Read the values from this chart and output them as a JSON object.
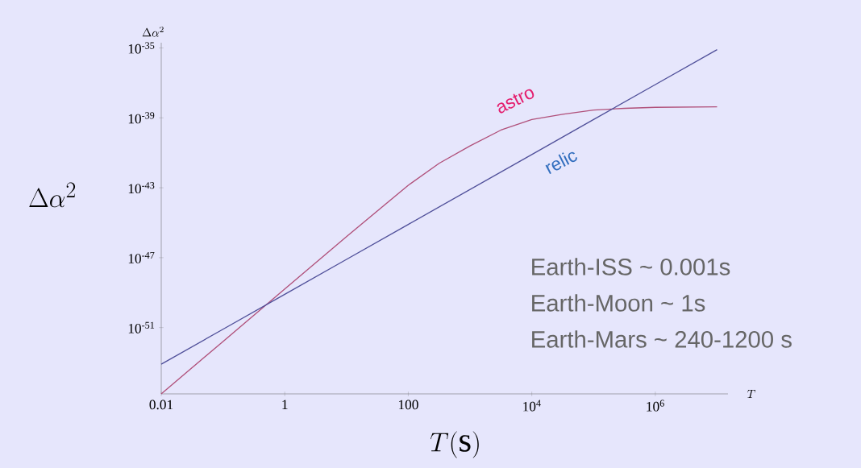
{
  "chart_data": {
    "type": "line",
    "xlabel": "T(\\mathrm{s})",
    "ylabel": "\\Delta\\alpha^2",
    "annotations": [
      "\\Delta\\alpha^2",
      "T",
      "Earth-ISS ~ 0.001s",
      "Earth-Moon ~ 1s",
      "Earth-Mars ~ 240-1200 s"
    ],
    "log": "xy",
    "xlim": [
      0.01,
      15000000
    ],
    "ylim": [
      1.6e-55,
      2e-35
    ],
    "xticks": [
      0.01,
      1,
      100,
      {
        "value": 10000,
        "label": "10$^{4}$"
      },
      {
        "value": 1000000,
        "label": "10$^{6}$"
      }
    ],
    "yticks": [
      {
        "value": 1e-35,
        "label": "10$^{-35}$"
      },
      {
        "value": 1e-39,
        "label": "10$^{-39}$"
      },
      {
        "value": 1e-43,
        "label": "10$^{-43}$"
      },
      {
        "value": 1e-47,
        "label": "10$^{-47}$"
      },
      {
        "value": 1e-51,
        "label": "10$^{-51}$"
      }
    ],
    "series": [
      {
        "name": "astro",
        "color": "#b0507a",
        "x": [
          0.01,
          0.1,
          1,
          10,
          100,
          316,
          1000,
          3162,
          10000,
          31623,
          100000,
          316228,
          1000000,
          10000000
        ],
        "values": [
          1.6e-55,
          1.6e-52,
          1.6e-49,
          1.6e-46,
          1.4e-43,
          2.5e-42,
          2.5e-41,
          2e-40,
          8e-40,
          1.6e-39,
          2.8e-39,
          3.5e-39,
          4e-39,
          4.3e-39
        ]
      },
      {
        "name": "relic",
        "color": "#50509a",
        "x": [
          0.01,
          0.1,
          1,
          10,
          100,
          1000,
          10000,
          100000,
          1000000,
          10000000
        ],
        "values": [
          8e-54,
          8e-52,
          8e-50,
          8e-48,
          8e-46,
          8e-44,
          8e-42,
          8e-40,
          8e-38,
          8e-36
        ]
      }
    ]
  }
}
